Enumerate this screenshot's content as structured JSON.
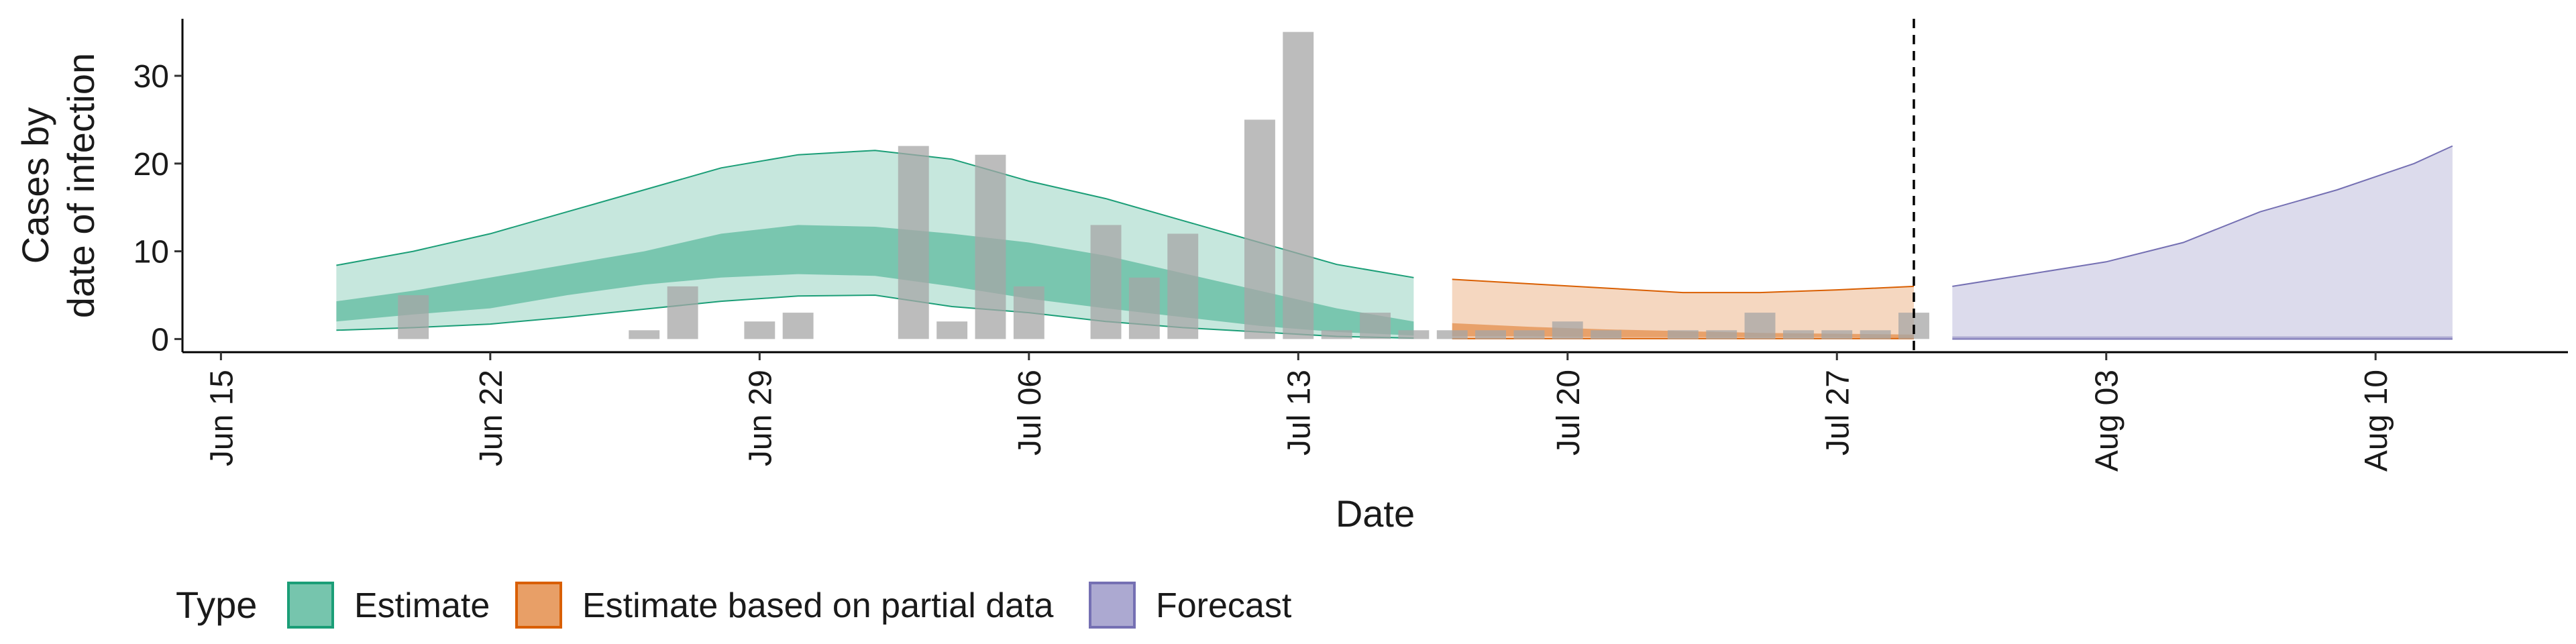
{
  "chart_data": {
    "type": "area",
    "xlabel": "Date",
    "ylabel": [
      "Cases by",
      "date of infection"
    ],
    "ylim": [
      -1.5,
      36.5
    ],
    "yticks": [
      0,
      10,
      20,
      30
    ],
    "xlim": [
      "2020-06-14",
      "2020-08-15"
    ],
    "xticks": [
      {
        "date": "2020-06-15",
        "label": "Jun 15"
      },
      {
        "date": "2020-06-22",
        "label": "Jun 22"
      },
      {
        "date": "2020-06-29",
        "label": "Jun 29"
      },
      {
        "date": "2020-07-06",
        "label": "Jul 06"
      },
      {
        "date": "2020-07-13",
        "label": "Jul 13"
      },
      {
        "date": "2020-07-20",
        "label": "Jul 20"
      },
      {
        "date": "2020-07-27",
        "label": "Jul 27"
      },
      {
        "date": "2020-08-03",
        "label": "Aug 03"
      },
      {
        "date": "2020-08-10",
        "label": "Aug 10"
      }
    ],
    "grid": false,
    "vline_date": "2020-07-29",
    "legend": {
      "title": "Type",
      "position": "bottom",
      "items": [
        {
          "label": "Estimate",
          "fill": "#1b9e77",
          "stroke": "#1b9e77"
        },
        {
          "label": "Estimate based on partial data",
          "fill": "#d95f02",
          "stroke": "#d95f02"
        },
        {
          "label": "Forecast",
          "fill": "#7570b3",
          "stroke": "#7570b3"
        }
      ]
    },
    "bars": {
      "color": "#a6a6a6",
      "dates": [
        "2020-06-20",
        "2020-06-26",
        "2020-06-27",
        "2020-06-29",
        "2020-06-30",
        "2020-07-03",
        "2020-07-04",
        "2020-07-05",
        "2020-07-06",
        "2020-07-08",
        "2020-07-09",
        "2020-07-10",
        "2020-07-12",
        "2020-07-13",
        "2020-07-14",
        "2020-07-15",
        "2020-07-16",
        "2020-07-17",
        "2020-07-18",
        "2020-07-19",
        "2020-07-20",
        "2020-07-21",
        "2020-07-23",
        "2020-07-24",
        "2020-07-25",
        "2020-07-26",
        "2020-07-27",
        "2020-07-28",
        "2020-07-29"
      ],
      "values": [
        5,
        1,
        6,
        2,
        3,
        22,
        2,
        21,
        6,
        13,
        7,
        12,
        25,
        35,
        1,
        3,
        1,
        1,
        1,
        1,
        2,
        1,
        1,
        1,
        3,
        1,
        1,
        1,
        3
      ]
    },
    "series": [
      {
        "name": "Estimate",
        "color": "#1b9e77",
        "x": [
          "2020-06-18",
          "2020-06-20",
          "2020-06-22",
          "2020-06-24",
          "2020-06-26",
          "2020-06-28",
          "2020-06-30",
          "2020-07-02",
          "2020-07-04",
          "2020-07-06",
          "2020-07-08",
          "2020-07-10",
          "2020-07-12",
          "2020-07-14",
          "2020-07-16"
        ],
        "lower90": [
          1.0,
          1.3,
          1.7,
          2.5,
          3.4,
          4.3,
          4.9,
          5.0,
          3.7,
          3.0,
          2.0,
          1.3,
          0.8,
          0.3,
          0.1
        ],
        "lower50": [
          2.0,
          2.8,
          3.5,
          5.0,
          6.2,
          7.0,
          7.4,
          7.2,
          6.0,
          4.6,
          3.5,
          2.5,
          1.5,
          0.8,
          0.4
        ],
        "upper50": [
          4.3,
          5.5,
          7.0,
          8.5,
          10.0,
          12.0,
          13.0,
          12.8,
          12.0,
          11.0,
          9.5,
          7.5,
          5.5,
          3.5,
          2.0
        ],
        "upper90": [
          8.4,
          10.0,
          12.0,
          14.5,
          17.0,
          19.5,
          21.0,
          21.5,
          20.5,
          18.0,
          16.0,
          13.5,
          11.0,
          8.5,
          7.0
        ]
      },
      {
        "name": "Estimate based on partial data",
        "color": "#d95f02",
        "x": [
          "2020-07-17",
          "2020-07-19",
          "2020-07-21",
          "2020-07-23",
          "2020-07-25",
          "2020-07-27",
          "2020-07-29"
        ],
        "lower90": [
          0.05,
          0.05,
          0.05,
          0.05,
          0.05,
          0.05,
          0.05
        ],
        "lower50": [
          0.3,
          0.3,
          0.2,
          0.2,
          0.2,
          0.2,
          0.1
        ],
        "upper50": [
          1.8,
          1.4,
          1.1,
          0.9,
          0.7,
          0.6,
          0.5
        ],
        "upper90": [
          6.8,
          6.3,
          5.8,
          5.3,
          5.3,
          5.6,
          6.0
        ]
      },
      {
        "name": "Forecast",
        "color": "#7570b3",
        "x": [
          "2020-07-30",
          "2020-08-01",
          "2020-08-03",
          "2020-08-05",
          "2020-08-07",
          "2020-08-09",
          "2020-08-11",
          "2020-08-12"
        ],
        "lower90": [
          0.0,
          0.0,
          0.0,
          0.0,
          0.0,
          0.0,
          0.0,
          0.0
        ],
        "lower50": [
          0.1,
          0.1,
          0.1,
          0.1,
          0.1,
          0.1,
          0.1,
          0.1
        ],
        "upper50": [
          0.3,
          0.3,
          0.3,
          0.3,
          0.3,
          0.3,
          0.3,
          0.3
        ],
        "upper90": [
          6.0,
          7.4,
          8.8,
          11.0,
          14.5,
          17.0,
          20.0,
          22.0
        ]
      }
    ]
  }
}
